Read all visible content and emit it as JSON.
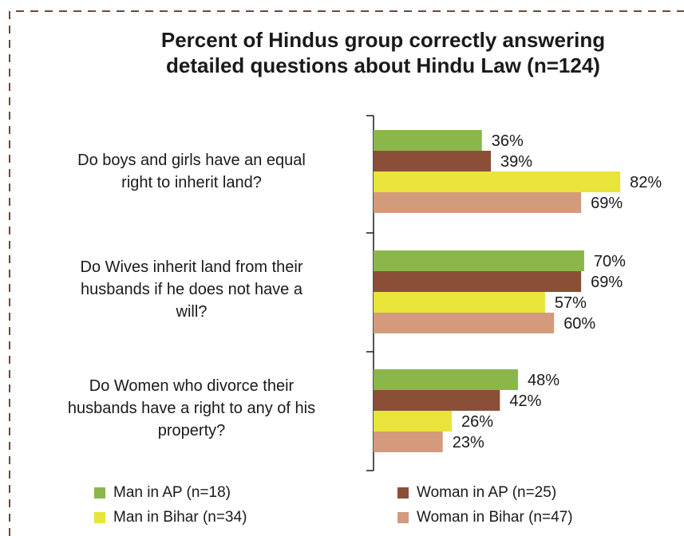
{
  "colors": {
    "man_ap": "#8ab64a",
    "woman_ap": "#8b4f38",
    "man_bihar": "#e8e43a",
    "woman_bihar": "#d39b7c",
    "frame": "#6b4a3a",
    "axis": "#1a1a1a"
  },
  "chart_data": {
    "type": "bar",
    "orientation": "horizontal",
    "title_lines": [
      "Percent of Hindus group correctly answering",
      "detailed questions about Hindu Law (n=124)"
    ],
    "categories": [
      [
        "Do boys and girls have an equal",
        "right to inherit land?"
      ],
      [
        "Do Wives inherit land from their",
        "husbands if he does not have a",
        "will?"
      ],
      [
        "Do Women who divorce their",
        "husbands have a right to any of his",
        "property?"
      ]
    ],
    "series": [
      {
        "name": "Man in AP (n=18)",
        "color_key": "man_ap",
        "values": [
          36,
          70,
          48
        ]
      },
      {
        "name": "Woman in AP (n=25)",
        "color_key": "woman_ap",
        "values": [
          39,
          69,
          42
        ]
      },
      {
        "name": "Man in Bihar (n=34)",
        "color_key": "man_bihar",
        "values": [
          82,
          57,
          26
        ]
      },
      {
        "name": "Woman in Bihar (n=47)",
        "color_key": "woman_bihar",
        "values": [
          69,
          60,
          23
        ]
      }
    ],
    "value_suffix": "%",
    "xlim": [
      0,
      100
    ],
    "grid": false,
    "legend_position": "bottom"
  }
}
